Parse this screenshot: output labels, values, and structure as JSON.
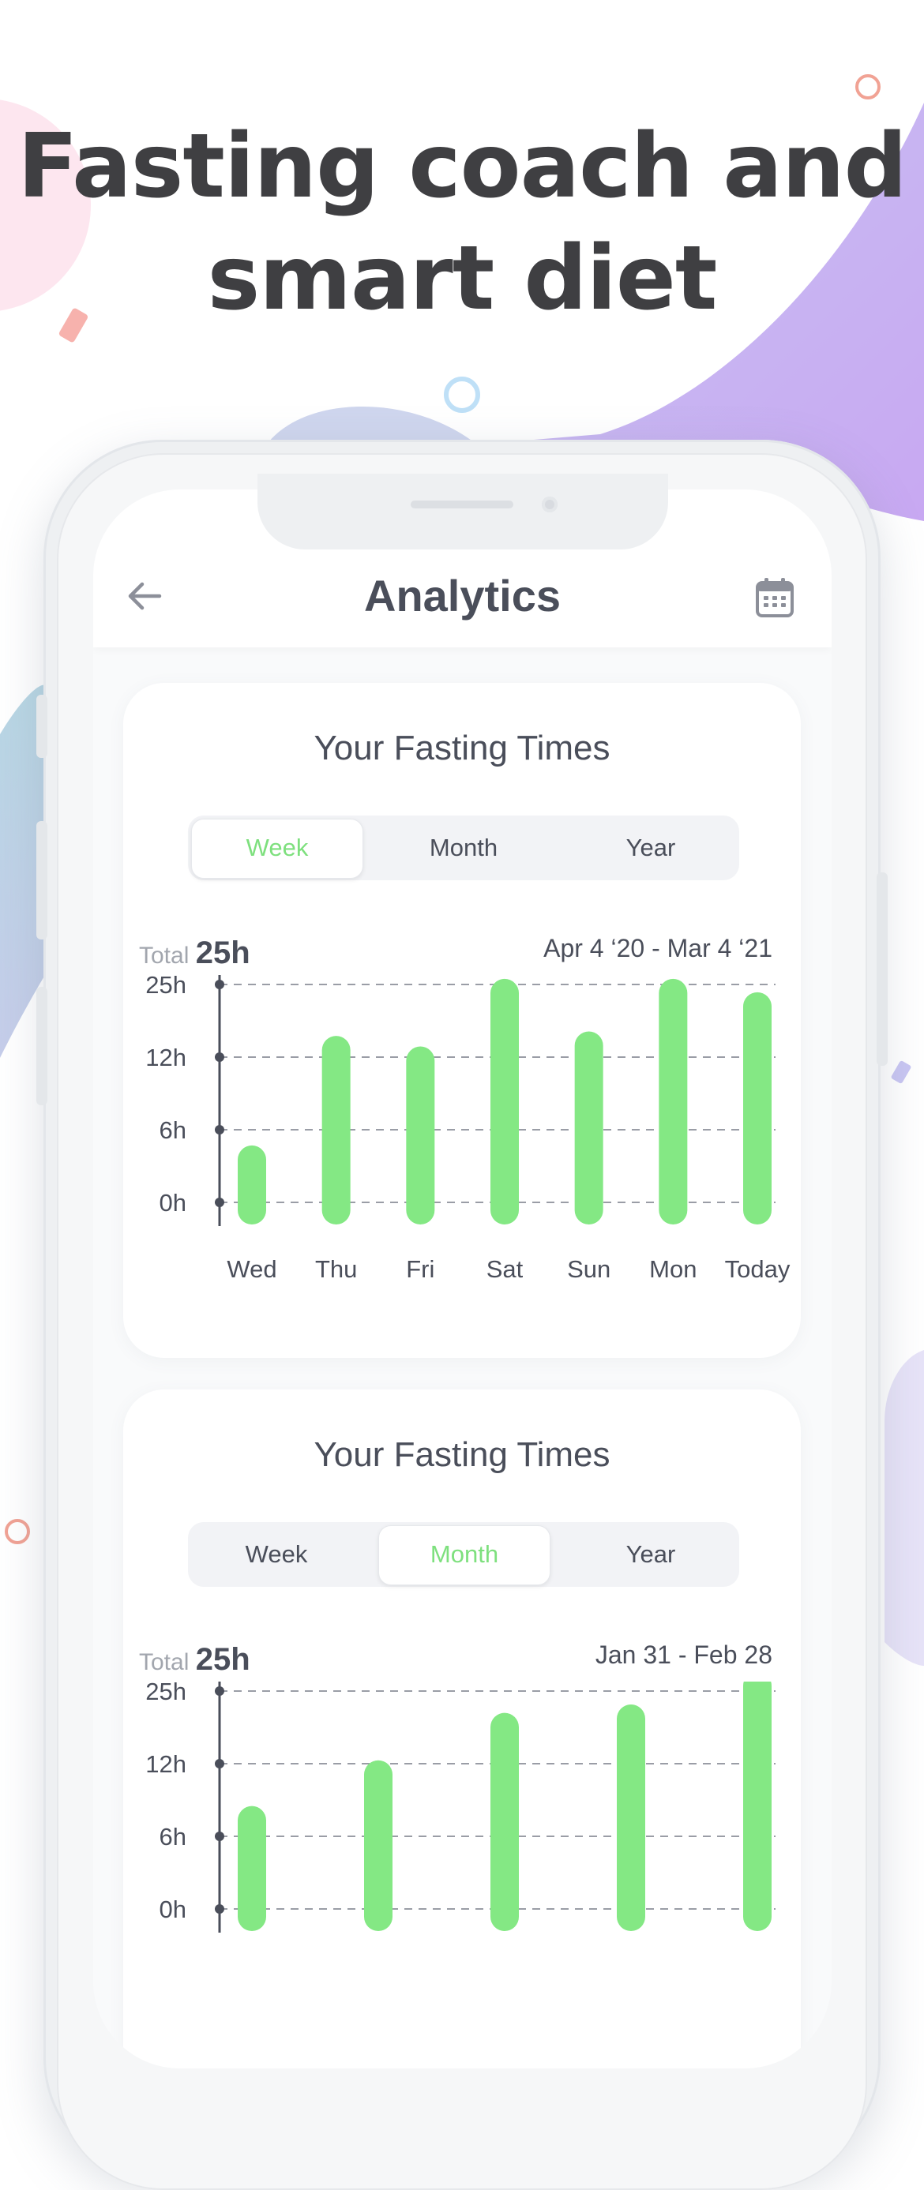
{
  "headline": {
    "line1": "Fasting coach and",
    "line2": "smart diet"
  },
  "colors": {
    "accent": "#84e884",
    "text": "#4a4e5a",
    "muted": "#a2a6ae"
  },
  "screen": {
    "title": "Analytics",
    "back_icon": "arrow-left-icon",
    "calendar_icon": "calendar-icon"
  },
  "cards": [
    {
      "title": "Your Fasting Times",
      "tabs": [
        "Week",
        "Month",
        "Year"
      ],
      "active_tab": "Week",
      "total_label": "Total",
      "total_value": "25h",
      "range": "Apr 4 ‘20 - Mar 4 ‘21"
    },
    {
      "title": "Your Fasting Times",
      "tabs": [
        "Week",
        "Month",
        "Year"
      ],
      "active_tab": "Month",
      "total_label": "Total",
      "total_value": "25h",
      "range": "Jan 31 - Feb 28"
    }
  ],
  "chart_data": [
    {
      "type": "bar",
      "y_ticks": [
        "0h",
        "6h",
        "12h",
        "25h"
      ],
      "categories": [
        "Wed",
        "Thu",
        "Fri",
        "Sat",
        "Sun",
        "Mon",
        "Today"
      ],
      "values": [
        4.7,
        15.8,
        13.9,
        26.0,
        16.6,
        26.0,
        23.6
      ],
      "grid": true
    },
    {
      "type": "bar",
      "y_ticks": [
        "0h",
        "6h",
        "12h",
        "25h"
      ],
      "categories": [
        "",
        "",
        "",
        "",
        ""
      ],
      "values": [
        8.5,
        12.6,
        21.1,
        22.6,
        28.5
      ],
      "grid": true
    }
  ]
}
